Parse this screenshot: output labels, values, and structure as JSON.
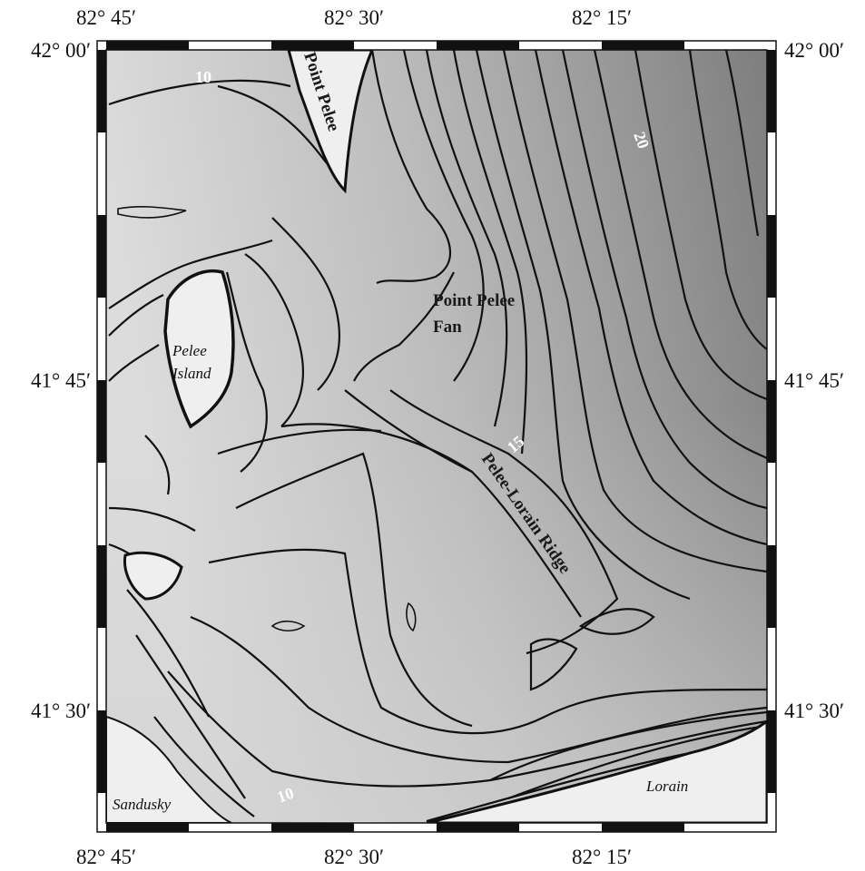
{
  "axes": {
    "top_labels": [
      "82° 45′",
      "82° 30′",
      "82° 15′"
    ],
    "bottom_labels": [
      "82° 45′",
      "82° 30′",
      "82° 15′"
    ],
    "left_labels": [
      "42° 00′",
      "41° 45′",
      "41° 30′"
    ],
    "right_labels": [
      "42° 00′",
      "41° 45′",
      "41° 30′"
    ]
  },
  "place_labels": {
    "point_pelee": "Point Pelee",
    "pelee_island_line1": "Pelee",
    "pelee_island_line2": "Island",
    "sandusky": "Sandusky",
    "lorain": "Lorain"
  },
  "feature_labels": {
    "fan_line1": "Point Pelee",
    "fan_line2": "Fan",
    "ridge": "Pelee-Lorain Ridge"
  },
  "contour_labels": {
    "c10_north": "10",
    "c20": "20",
    "c15": "15",
    "c10_south": "10"
  }
}
